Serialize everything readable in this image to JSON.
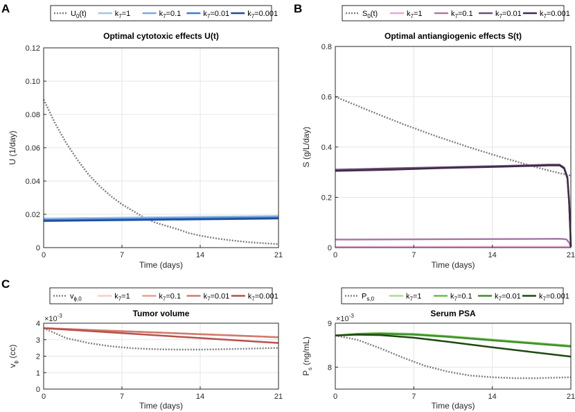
{
  "chart_data": [
    {
      "panel": "A",
      "type": "line",
      "title": "Optimal cytotoxic effects U(t)",
      "xlabel": "Time (days)",
      "ylabel": "U (1/day)",
      "xlim": [
        0,
        21
      ],
      "ylim": [
        0,
        0.12
      ],
      "xticks": [
        0,
        7,
        14,
        21
      ],
      "yticks": [
        0,
        0.02,
        0.04,
        0.06,
        0.08,
        0.1,
        0.12
      ],
      "ytick_labels": [
        "0",
        "0.02",
        "0.04",
        "0.06",
        "0.08",
        "0.10",
        "0.12"
      ],
      "exponent": "",
      "grid": true,
      "legend": {
        "placement": "top",
        "base": "U",
        "base_sub": "0",
        "base_suffix": "(t)",
        "series_base": "k",
        "series_sub": "7"
      },
      "series": [
        {
          "name": "U0(t)",
          "label": "=",
          "color": "#808080",
          "dashed": true,
          "width": 2.5,
          "x": [
            0,
            1,
            2,
            3,
            4,
            5,
            6,
            7,
            8,
            9,
            10,
            11,
            12,
            13,
            14,
            15,
            16,
            17,
            18,
            19,
            20,
            21
          ],
          "y": [
            0.089,
            0.075,
            0.063,
            0.053,
            0.044,
            0.037,
            0.031,
            0.026,
            0.022,
            0.018,
            0.015,
            0.013,
            0.011,
            0.0087,
            0.0072,
            0.006,
            0.005,
            0.0042,
            0.0035,
            0.0029,
            0.0025,
            0.0021
          ]
        },
        {
          "name": "k7=1",
          "label": "=1",
          "color": "#a3c4e6",
          "width": 2.5,
          "x": [
            0,
            7,
            14,
            21
          ],
          "y": [
            0.0175,
            0.018,
            0.0185,
            0.019
          ]
        },
        {
          "name": "k7=0.1",
          "label": "=0.1",
          "color": "#7fa8dc",
          "width": 2.5,
          "x": [
            0,
            7,
            14,
            21
          ],
          "y": [
            0.017,
            0.0175,
            0.018,
            0.0185
          ]
        },
        {
          "name": "k7=0.01",
          "label": "=0.01",
          "color": "#3f7bd1",
          "width": 2.5,
          "x": [
            0,
            7,
            14,
            21
          ],
          "y": [
            0.0165,
            0.017,
            0.0175,
            0.018
          ]
        },
        {
          "name": "k7=0.001",
          "label": "=0.001",
          "color": "#1b4f9c",
          "width": 2.5,
          "x": [
            0,
            7,
            14,
            21
          ],
          "y": [
            0.016,
            0.0165,
            0.017,
            0.0175
          ]
        }
      ]
    },
    {
      "panel": "B",
      "type": "line",
      "title": "Optimal antiangiogenic effects S(t)",
      "xlabel": "Time (days)",
      "ylabel": "S (g/L/day)",
      "xlim": [
        0,
        21
      ],
      "ylim": [
        0,
        0.8
      ],
      "xticks": [
        0,
        7,
        14,
        21
      ],
      "yticks": [
        0,
        0.2,
        0.4,
        0.6,
        0.8
      ],
      "ytick_labels": [
        "0",
        "0.2",
        "0.4",
        "0.6",
        "0.8"
      ],
      "exponent": "",
      "grid": true,
      "legend": {
        "placement": "top",
        "base": "S",
        "base_sub": "0",
        "base_suffix": "(t)",
        "series_base": "k",
        "series_sub": "7"
      },
      "series": [
        {
          "name": "S0(t)",
          "label": "=",
          "color": "#808080",
          "dashed": true,
          "width": 2.5,
          "x": [
            0,
            3,
            6,
            9,
            12,
            15,
            18,
            19,
            20,
            21
          ],
          "y": [
            0.6,
            0.545,
            0.492,
            0.443,
            0.398,
            0.357,
            0.319,
            0.307,
            0.296,
            0.286
          ]
        },
        {
          "name": "k7=1",
          "label": "=1",
          "color": "#e6a9d6",
          "width": 2.5,
          "x": [
            0,
            20.8,
            20.9,
            21
          ],
          "y": [
            0.003,
            0.003,
            0.003,
            0.003
          ]
        },
        {
          "name": "k7=0.1",
          "label": "=0.1",
          "color": "#a77aa6",
          "width": 2.5,
          "x": [
            0,
            20,
            20.6,
            20.85,
            20.95,
            21
          ],
          "y": [
            0.032,
            0.035,
            0.033,
            0.02,
            0.008,
            0.003
          ]
        },
        {
          "name": "k7=0.01",
          "label": "=0.01",
          "color": "#6e4f78",
          "width": 2.5,
          "x": [
            0,
            5,
            10,
            15,
            19,
            20,
            20.4,
            20.7,
            20.85,
            20.95,
            21
          ],
          "y": [
            0.31,
            0.315,
            0.32,
            0.325,
            0.33,
            0.33,
            0.318,
            0.28,
            0.18,
            0.07,
            0.005
          ]
        },
        {
          "name": "k7=0.001",
          "label": "=0.001",
          "color": "#402a4a",
          "width": 2.5,
          "x": [
            0,
            5,
            10,
            15,
            19,
            20,
            20.4,
            20.7,
            20.85,
            20.95,
            21
          ],
          "y": [
            0.305,
            0.31,
            0.317,
            0.322,
            0.327,
            0.327,
            0.315,
            0.275,
            0.175,
            0.065,
            0.003
          ]
        }
      ]
    },
    {
      "panel": "C",
      "type": "line",
      "title": "Tumor volume",
      "xlabel": "Time (days)",
      "ylabel": "v",
      "ylabel_sub": "ϕ",
      "ylabel_suffix": "(cc)",
      "xlim": [
        0,
        21
      ],
      "ylim": [
        0,
        0.004
      ],
      "xticks": [
        0,
        7,
        14,
        21
      ],
      "yticks": [
        0,
        0.001,
        0.002,
        0.003,
        0.004
      ],
      "ytick_labels": [
        "0",
        "1",
        "2",
        "3",
        "4"
      ],
      "exponent": "×10",
      "exponent_power": "-3",
      "grid": true,
      "legend": {
        "placement": "top",
        "base": "v",
        "base_sub": "ϕ,0",
        "base_suffix": "",
        "series_base": "k",
        "series_sub": "7"
      },
      "series": [
        {
          "name": "vϕ,0",
          "label": "=",
          "color": "#808080",
          "dashed": true,
          "width": 2.5,
          "x": [
            0,
            2,
            4,
            6,
            8,
            10,
            12,
            14,
            16,
            18,
            21
          ],
          "y": [
            0.0037,
            0.0031,
            0.0028,
            0.0026,
            0.00248,
            0.00242,
            0.0024,
            0.0024,
            0.00242,
            0.00245,
            0.0025
          ]
        },
        {
          "name": "k7=1",
          "label": "=1",
          "color": "#f7cbc8",
          "width": 2.5,
          "x": [
            0,
            21
          ],
          "y": [
            0.0037,
            0.00315
          ]
        },
        {
          "name": "k7=0.1",
          "label": "=0.1",
          "color": "#e6a093",
          "width": 2.5,
          "x": [
            0,
            21
          ],
          "y": [
            0.0037,
            0.00315
          ]
        },
        {
          "name": "k7=0.01",
          "label": "=0.01",
          "color": "#d17a6c",
          "width": 2.5,
          "x": [
            0,
            21
          ],
          "y": [
            0.0037,
            0.00315
          ]
        },
        {
          "name": "k7=0.001",
          "label": "=0.001",
          "color": "#b5524a",
          "width": 2.5,
          "x": [
            0,
            7,
            14,
            21
          ],
          "y": [
            0.0037,
            0.0034,
            0.0031,
            0.0028
          ]
        }
      ]
    },
    {
      "panel": "",
      "type": "line",
      "title": "Serum PSA",
      "xlabel": "Time (days)",
      "ylabel": "P",
      "ylabel_sub": "s",
      "ylabel_suffix": "(ng/mL)",
      "xlim": [
        0,
        21
      ],
      "ylim": [
        0.0075,
        0.009
      ],
      "xticks": [
        0,
        7,
        14,
        21
      ],
      "yticks": [
        0.008,
        0.009
      ],
      "ytick_labels": [
        "8",
        "9"
      ],
      "exponent": "×10",
      "exponent_power": "-3",
      "grid": true,
      "legend": {
        "placement": "top",
        "base": "P",
        "base_sub": "s,0",
        "base_suffix": "",
        "series_base": "k",
        "series_sub": "7"
      },
      "series": [
        {
          "name": "Ps,0",
          "label": "=",
          "color": "#808080",
          "dashed": true,
          "width": 2.5,
          "x": [
            0,
            2,
            4,
            6,
            8,
            10,
            12,
            14,
            16,
            18,
            21
          ],
          "y": [
            0.00872,
            0.00862,
            0.00843,
            0.00822,
            0.00803,
            0.0079,
            0.00781,
            0.00777,
            0.00775,
            0.00775,
            0.00777
          ]
        },
        {
          "name": "k7=1",
          "label": "=1",
          "color": "#a6e08a",
          "width": 2.5,
          "x": [
            0,
            2,
            4,
            7,
            10,
            14,
            17,
            21
          ],
          "y": [
            0.00872,
            0.00876,
            0.00878,
            0.00876,
            0.00871,
            0.00863,
            0.00857,
            0.00849
          ]
        },
        {
          "name": "k7=0.1",
          "label": "=0.1",
          "color": "#6abf4b",
          "width": 2.5,
          "x": [
            0,
            2,
            4,
            7,
            10,
            14,
            17,
            21
          ],
          "y": [
            0.00872,
            0.00876,
            0.00877,
            0.00875,
            0.0087,
            0.00862,
            0.00856,
            0.00848
          ]
        },
        {
          "name": "k7=0.01",
          "label": "=0.01",
          "color": "#3f8f2e",
          "width": 2.5,
          "x": [
            0,
            2,
            4,
            7,
            10,
            14,
            17,
            21
          ],
          "y": [
            0.00872,
            0.00875,
            0.00876,
            0.00874,
            0.00869,
            0.00861,
            0.00855,
            0.00847
          ]
        },
        {
          "name": "k7=0.001",
          "label": "=0.001",
          "color": "#1d4a0f",
          "width": 2.5,
          "x": [
            0,
            2,
            4,
            7,
            10,
            14,
            17,
            21
          ],
          "y": [
            0.00872,
            0.00874,
            0.00873,
            0.00867,
            0.00858,
            0.00845,
            0.00836,
            0.00824
          ]
        }
      ]
    }
  ]
}
